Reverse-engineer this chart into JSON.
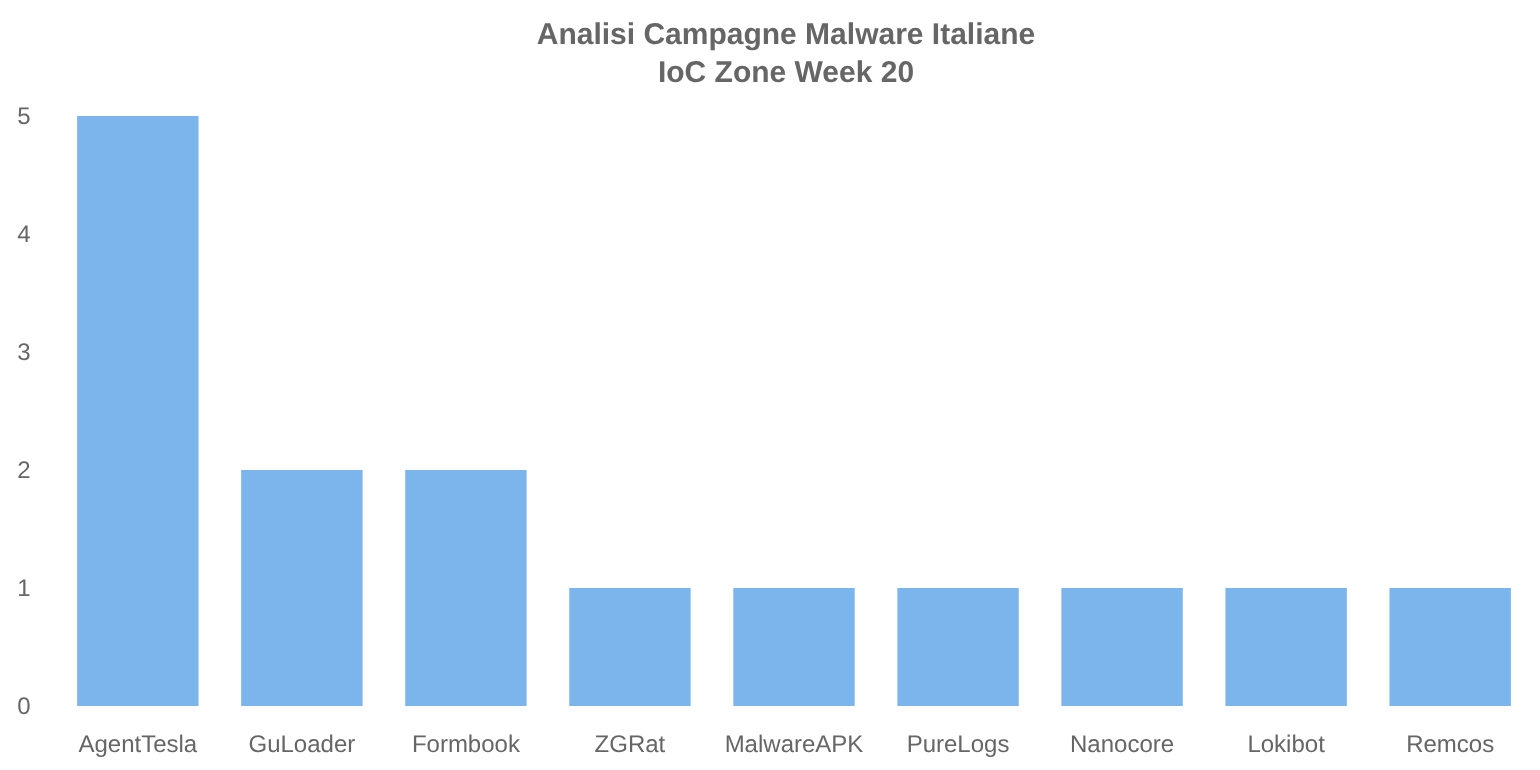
{
  "chart_data": {
    "type": "bar",
    "title": "Analisi Campagne Malware Italiane",
    "subtitle": "IoC Zone Week 20",
    "categories": [
      "AgentTesla",
      "GuLoader",
      "Formbook",
      "ZGRat",
      "MalwareAPK",
      "PureLogs",
      "Nanocore",
      "Lokibot",
      "Remcos"
    ],
    "values": [
      5,
      2,
      2,
      1,
      1,
      1,
      1,
      1,
      1
    ],
    "color": "#7cb4ec",
    "ylim": [
      0,
      5
    ],
    "yticks": [
      0,
      1,
      2,
      3,
      4,
      5
    ],
    "grid": false
  }
}
